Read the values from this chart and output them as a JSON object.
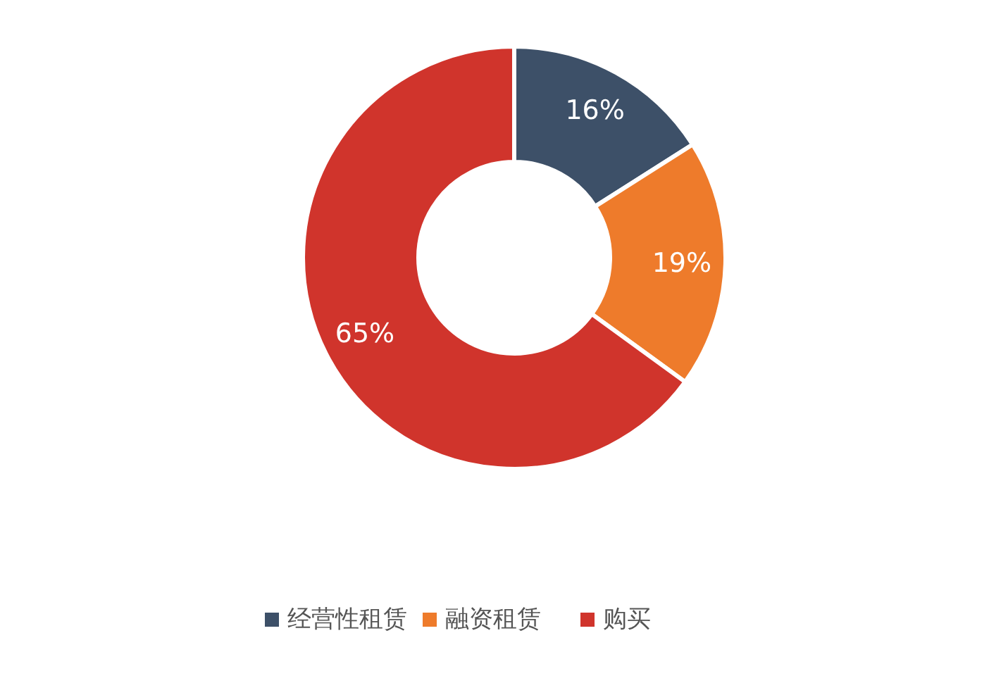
{
  "chart_data": {
    "type": "donut",
    "categories": [
      "经营性租赁",
      "融资租赁",
      "购买"
    ],
    "values": [
      16,
      19,
      65
    ],
    "colors": [
      "#3d5068",
      "#ee7b2b",
      "#d0342c"
    ],
    "value_labels": [
      "16%",
      "19%",
      "65%"
    ],
    "legend": "bottom"
  }
}
